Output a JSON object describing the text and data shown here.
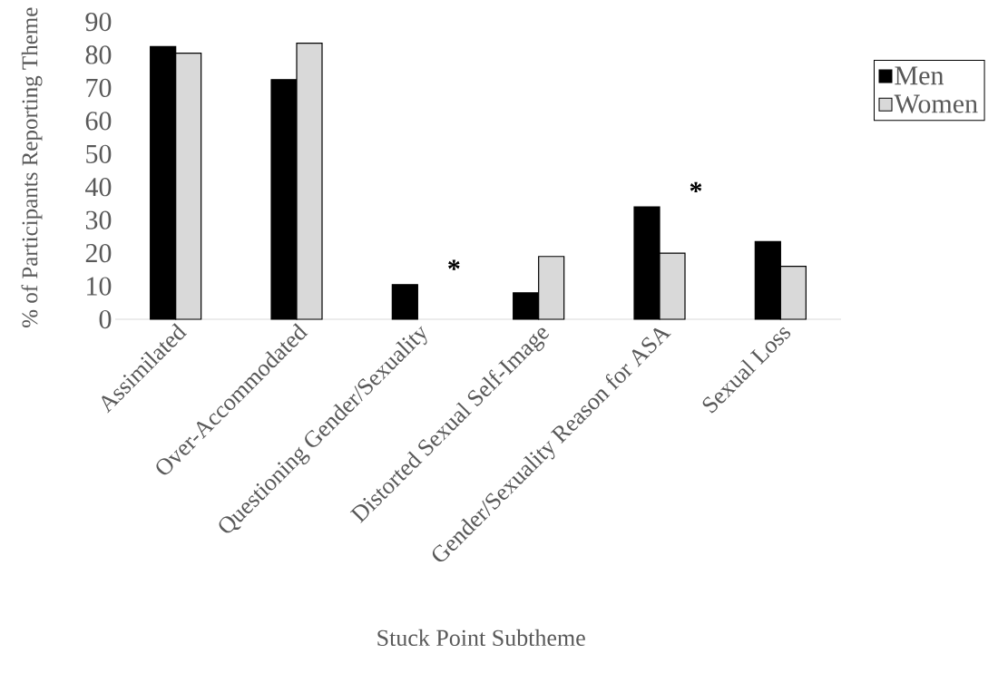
{
  "chart_data": {
    "type": "bar",
    "xlabel": "Stuck Point Subtheme",
    "ylabel": "% of Participants Reporting Theme",
    "categories": [
      "Assimilated",
      "Over-Accommodated",
      "Questioning Gender/Sexuality",
      "Distorted Sexual Self-Image",
      "Gender/Sexuality Reason for ASA",
      "Sexual Loss"
    ],
    "series": [
      {
        "name": "Men",
        "color": "#000000",
        "values": [
          82.5,
          72.5,
          10.5,
          8,
          34,
          23.5
        ]
      },
      {
        "name": "Women",
        "color": "#d9d9d9",
        "values": [
          80.5,
          83.5,
          0,
          19,
          20,
          16
        ]
      }
    ],
    "ylim": [
      0,
      90
    ],
    "yticks": [
      0,
      10,
      20,
      30,
      40,
      50,
      60,
      70,
      80,
      90
    ],
    "legend": "right",
    "annotations": [
      {
        "text": "*",
        "x": "Questioning Gender/Sexuality",
        "y": 10.5
      },
      {
        "text": "*",
        "x": "Gender/Sexuality Reason for ASA",
        "y": 34
      }
    ]
  }
}
